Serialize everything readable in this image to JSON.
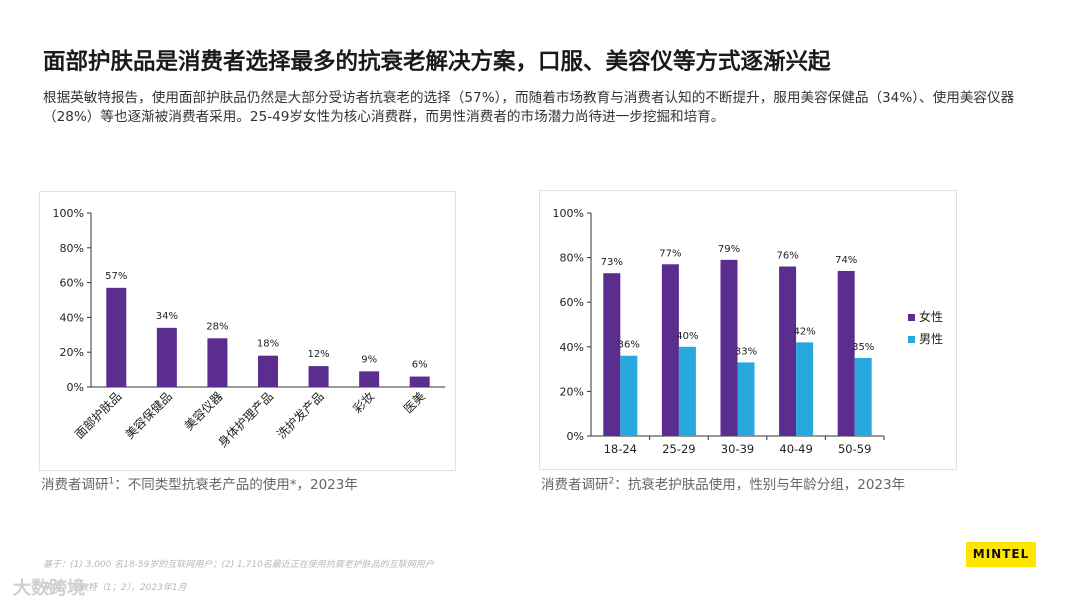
{
  "header": {
    "title": "面部护肤品是消费者选择最多的抗衰老解决方案，口服、美容仪等方式逐渐兴起",
    "subtitle": "根据英敏特报告，使用面部护肤品仍然是大部分受访者抗衰老的选择（57%），而随着市场教育与消费者认知的不断提升，服用美容保健品（34%）、使用美容仪器（28%）等也逐渐被消费者采用。25-49岁女性为核心消费群，而男性消费者的市场潜力尚待进一步挖掘和培育。"
  },
  "chart_data": [
    {
      "type": "bar",
      "categories": [
        "面部护肤品",
        "美容保健品",
        "美容仪器",
        "身体护理产品",
        "洗护发产品",
        "彩妆",
        "医美"
      ],
      "values": [
        57,
        34,
        28,
        18,
        12,
        9,
        6
      ],
      "data_labels": [
        "57%",
        "34%",
        "28%",
        "18%",
        "12%",
        "9%",
        "6%"
      ],
      "ylim": [
        0,
        100
      ],
      "yticks": [
        "0%",
        "20%",
        "40%",
        "60%",
        "80%",
        "100%"
      ],
      "color": "#5b2d8e",
      "grid": false,
      "caption": "消费者调研",
      "caption_sup": "1",
      "caption_rest": "：不同类型抗衰老产品的使用*，2023年"
    },
    {
      "type": "bar",
      "categories": [
        "18-24",
        "25-29",
        "30-39",
        "40-49",
        "50-59"
      ],
      "series": [
        {
          "name": "女性",
          "values": [
            73,
            77,
            79,
            76,
            74
          ],
          "labels": [
            "73%",
            "77%",
            "79%",
            "76%",
            "74%"
          ],
          "color": "#5b2d8e"
        },
        {
          "name": "男性",
          "values": [
            36,
            40,
            33,
            42,
            35
          ],
          "labels": [
            "36%",
            "40%",
            "33%",
            "42%",
            "35%"
          ],
          "color": "#29a8e0"
        }
      ],
      "ylim": [
        0,
        100
      ],
      "yticks": [
        "0%",
        "20%",
        "40%",
        "60%",
        "80%",
        "100%"
      ],
      "legend": "right",
      "grid": false,
      "caption": "消费者调研",
      "caption_sup": "2",
      "caption_rest": "：抗衰老护肤品使用，性别与年龄分组，2023年"
    }
  ],
  "footer": {
    "base": "基于：(1) 3,000 名18-59岁的互联网用户；(2) 1,710名最近正在使用抗衰老护肤品的互联网用户",
    "source": "来源：英敏特（1；2），2023年1月"
  },
  "brand": {
    "logo": "MINTEL",
    "watermark": "大数跨境"
  }
}
